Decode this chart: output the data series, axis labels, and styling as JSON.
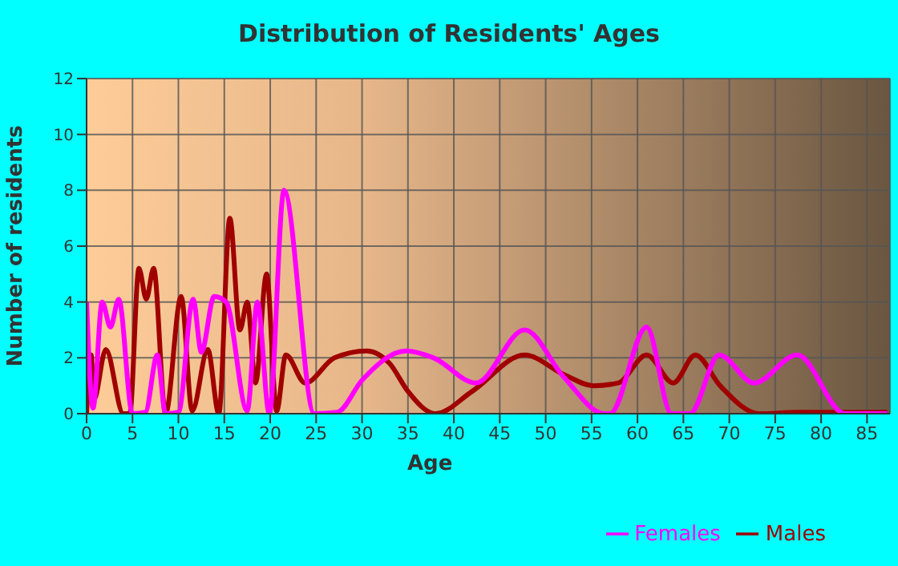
{
  "chart_data": {
    "type": "line",
    "title": "Distribution of Residents' Ages",
    "xlabel": "Age",
    "ylabel": "Number of residents",
    "xlim": [
      0,
      87.5
    ],
    "xticks": [
      0,
      5,
      10,
      15,
      20,
      25,
      30,
      35,
      40,
      45,
      50,
      55,
      60,
      65,
      70,
      75,
      80,
      85
    ],
    "ylim": [
      0,
      12
    ],
    "yticks": [
      0,
      2,
      4,
      6,
      8,
      10,
      12
    ],
    "grid": true,
    "legend": "bottom right",
    "marker": "none",
    "line_style": "solid",
    "series": [
      {
        "name": "Males",
        "color": "#a00000",
        "x": [
          0,
          0.5,
          0.8,
          2.1,
          4,
          4.7,
          5.7,
          6.5,
          7.3,
          8.6,
          10.3,
          11.5,
          13.2,
          14.4,
          15.6,
          16.7,
          17.5,
          18.4,
          19.6,
          20.7,
          21.7,
          23.8,
          27,
          30.5,
          33,
          35,
          38,
          42,
          47.7,
          52,
          55.2,
          57.9,
          61,
          63.9,
          66.3,
          69,
          73.3,
          77.4,
          87.2
        ],
        "values": [
          0,
          2.1,
          0.5,
          2.3,
          0,
          0,
          5.2,
          4.1,
          5.2,
          0,
          4.2,
          0.1,
          2.3,
          0,
          7,
          3,
          4,
          1.1,
          5,
          0.1,
          2.1,
          1.1,
          2,
          2.25,
          1.8,
          0.8,
          0,
          0.8,
          2.1,
          1.4,
          1,
          1.1,
          2.1,
          1.1,
          2.1,
          1,
          0,
          0.05,
          0.05
        ]
      },
      {
        "name": "Females",
        "color": "#ff00ff",
        "x": [
          0,
          0.7,
          1.7,
          2.6,
          3.5,
          5,
          6.4,
          7.7,
          8.6,
          10,
          11.6,
          12.5,
          13.9,
          15.2,
          17.5,
          18.6,
          19.9,
          21.5,
          24.8,
          27.3,
          30,
          34.8,
          37.8,
          42.4,
          47.7,
          52,
          56.4,
          57,
          61,
          63.7,
          65.7,
          68.9,
          72.7,
          77.4,
          82.6,
          87.2
        ],
        "values": [
          4,
          0.2,
          4,
          3.1,
          4.1,
          0,
          0.05,
          2.1,
          0,
          0.05,
          4.1,
          2.2,
          4.2,
          4,
          0.1,
          4,
          0,
          8,
          0,
          0.05,
          1.2,
          2.25,
          2,
          1.1,
          3,
          1.3,
          0,
          0,
          3.1,
          0,
          0,
          2.1,
          1.1,
          2.1,
          0,
          0
        ]
      }
    ]
  }
}
